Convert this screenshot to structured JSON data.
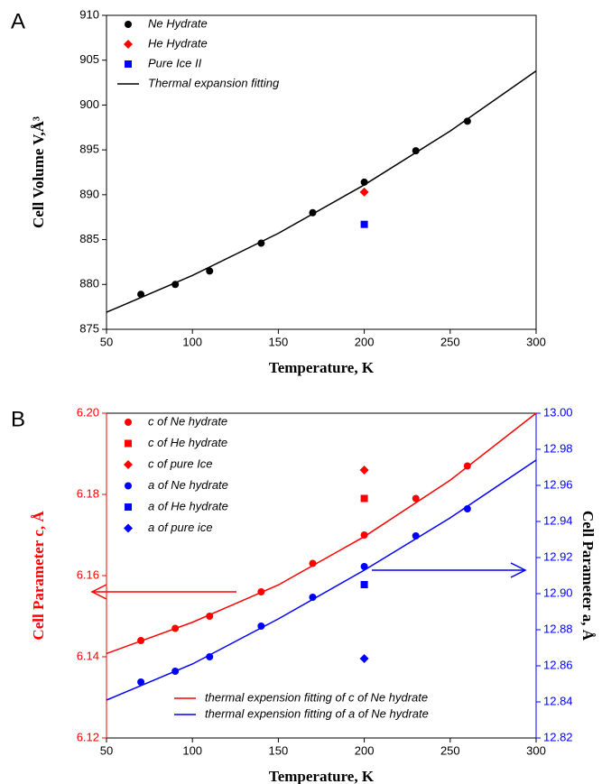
{
  "chart_data": [
    {
      "type": "scatter",
      "panel_label": "A",
      "xlabel": "Temperature, K",
      "ylabel": "Cell Volume V,Å³",
      "xlim": [
        50,
        300
      ],
      "xticks": [
        50,
        100,
        150,
        200,
        250,
        300
      ],
      "ylim": [
        875,
        910
      ],
      "yticks": [
        875,
        880,
        885,
        890,
        895,
        900,
        905,
        910
      ],
      "ycolor": "#000000",
      "legend": "upper left",
      "line_legend": "upper left",
      "series": [
        {
          "name": "Ne Hydrate",
          "color": "#000000",
          "marker": "circle",
          "x": [
            70,
            90,
            110,
            140,
            170,
            200,
            230,
            260
          ],
          "values": [
            878.9,
            880.0,
            881.5,
            884.6,
            888.0,
            891.4,
            894.9,
            898.2
          ]
        },
        {
          "name": "He Hydrate",
          "color": "#ff0000",
          "marker": "diamond",
          "x": [
            200
          ],
          "values": [
            890.3
          ]
        },
        {
          "name": "Pure Ice II",
          "color": "#0000ff",
          "marker": "square",
          "x": [
            200
          ],
          "values": [
            886.7
          ]
        },
        {
          "name": "Thermal expansion fitting",
          "color": "#000000",
          "marker": "line",
          "x": [
            50,
            100,
            150,
            200,
            250,
            300
          ],
          "values": [
            876.9,
            881.0,
            885.7,
            891.1,
            897.1,
            903.8
          ]
        }
      ]
    },
    {
      "type": "scatter",
      "panel_label": "B",
      "xlabel": "Temperature, K",
      "ylabel": "Cell Parameter c, Å",
      "y2label": "Cell Parameter a, Å",
      "xlim": [
        50,
        300
      ],
      "xticks": [
        50,
        100,
        150,
        200,
        250,
        300
      ],
      "ylim": [
        6.12,
        6.2
      ],
      "yticks": [
        6.12,
        6.14,
        6.16,
        6.18,
        {
          "value": 6.2,
          "label": "6.20"
        }
      ],
      "y2lim": [
        12.82,
        13.0
      ],
      "y2ticks": [
        12.82,
        12.84,
        12.86,
        12.88,
        {
          "value": 12.9,
          "label": "12.90"
        },
        12.92,
        12.94,
        12.96,
        12.98,
        {
          "value": 13.0,
          "label": "13.00"
        }
      ],
      "ycolor": "#ff0000",
      "y2color": "#0000ff",
      "legend": "upper left",
      "line_legend": "lower right",
      "series": [
        {
          "name": "c of Ne hydrate",
          "color": "#ff0000",
          "marker": "circle",
          "x": [
            70,
            90,
            110,
            140,
            170,
            200,
            230,
            260
          ],
          "values": [
            6.144,
            6.147,
            6.15,
            6.156,
            6.163,
            6.17,
            6.179,
            6.187
          ]
        },
        {
          "name": "c of He hydrate",
          "color": "#ff0000",
          "marker": "square",
          "x": [
            200
          ],
          "values": [
            6.179
          ]
        },
        {
          "name": "c of pure Ice",
          "color": "#ff0000",
          "marker": "diamond",
          "x": [
            200
          ],
          "values": [
            6.186
          ]
        },
        {
          "name": "a of Ne hydrate",
          "color": "#0000ff",
          "marker": "circle",
          "axis": "y2",
          "x": [
            70,
            90,
            110,
            140,
            170,
            200,
            230,
            260
          ],
          "values": [
            12.851,
            12.857,
            12.865,
            12.882,
            12.898,
            12.915,
            12.932,
            12.947
          ]
        },
        {
          "name": "a of He hydrate",
          "color": "#0000ff",
          "marker": "square",
          "axis": "y2",
          "x": [
            200
          ],
          "values": [
            12.905
          ]
        },
        {
          "name": "a of pure ice",
          "color": "#0000ff",
          "marker": "diamond",
          "axis": "y2",
          "x": [
            200
          ],
          "values": [
            12.864
          ]
        },
        {
          "name": "thermal expension fitting of c of Ne hydrate",
          "color": "#ff0000",
          "marker": "line",
          "x": [
            50,
            100,
            150,
            200,
            250,
            300
          ],
          "values": [
            6.1408,
            6.1485,
            6.1577,
            6.1696,
            6.1835,
            6.2
          ]
        },
        {
          "name": "thermal expension fitting of a of Ne hydrate",
          "color": "#0000ff",
          "marker": "line",
          "axis": "y2",
          "x": [
            50,
            100,
            150,
            200,
            250,
            300
          ],
          "values": [
            12.841,
            12.861,
            12.886,
            12.913,
            12.942,
            12.974
          ]
        }
      ]
    }
  ]
}
